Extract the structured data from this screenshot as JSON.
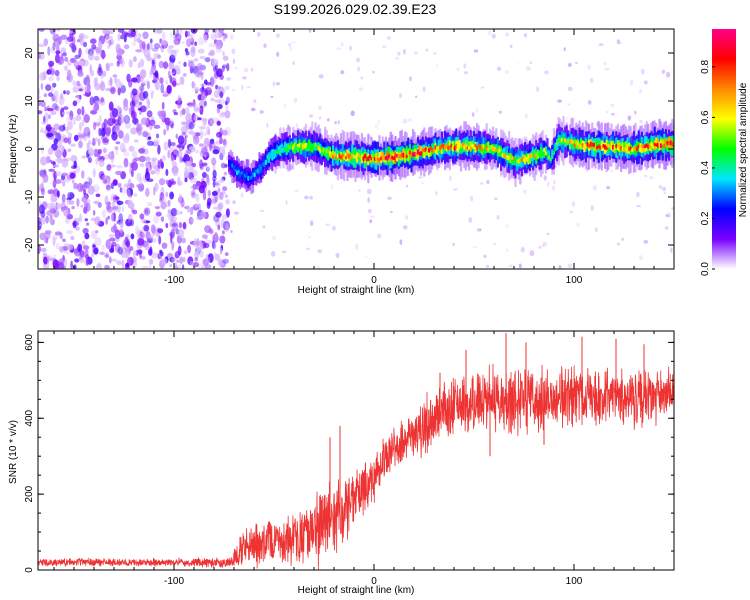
{
  "title": "S199.2026.029.02.39.E23",
  "colors": {
    "snr_line": "#ee3333",
    "frame": "#000000",
    "background": "#ffffff"
  },
  "chart_data": [
    {
      "type": "heatmap",
      "xlabel": "Height of straight line (km)",
      "ylabel": "Frequency (Hz)",
      "xlim": [
        -168,
        150
      ],
      "ylim": [
        -25,
        25
      ],
      "xticks": [
        -100,
        0,
        100
      ],
      "yticks": [
        -20,
        -10,
        0,
        10,
        20
      ],
      "colorbar": {
        "label": "Normalized spectral amplitude",
        "range": [
          0.0,
          0.95
        ],
        "ticks": [
          0.0,
          0.2,
          0.4,
          0.6,
          0.8
        ],
        "colormap": [
          "#ffffff",
          "#7700ff",
          "#0000ff",
          "#00e6ff",
          "#00ff00",
          "#ffff00",
          "#ff8800",
          "#ff0000",
          "#ff0088"
        ]
      },
      "track": {
        "x": [
          -73,
          -68,
          -62,
          -57,
          -52,
          -47,
          -40,
          -30,
          -20,
          -10,
          0,
          10,
          20,
          30,
          40,
          50,
          60,
          70,
          75,
          80,
          85,
          88,
          92,
          100,
          110,
          120,
          130,
          140,
          150
        ],
        "freq": [
          -3,
          -5,
          -6,
          -4,
          -1,
          0,
          0.5,
          0.5,
          -1.5,
          -1.5,
          -2,
          -1.5,
          -1,
          0,
          0.5,
          0.5,
          0,
          -2.5,
          -2,
          -1.5,
          -0.5,
          -2,
          2,
          1,
          0.5,
          0.5,
          0,
          1,
          1
        ],
        "amplitude": [
          0.2,
          0.3,
          0.25,
          0.3,
          0.35,
          0.4,
          0.5,
          0.45,
          0.55,
          0.6,
          0.65,
          0.75,
          0.7,
          0.55,
          0.6,
          0.55,
          0.5,
          0.5,
          0.55,
          0.5,
          0.45,
          0.4,
          0.45,
          0.55,
          0.65,
          0.6,
          0.6,
          0.65,
          0.7
        ]
      },
      "noise_region_x": [
        -168,
        -73
      ]
    },
    {
      "type": "line",
      "xlabel": "Height of straight line (km)",
      "ylabel": "SNR (10 * v/v)",
      "xlim": [
        -168,
        150
      ],
      "ylim": [
        0,
        630
      ],
      "xticks": [
        -100,
        0,
        100
      ],
      "yticks": [
        0,
        200,
        400,
        600
      ],
      "envelope": {
        "x": [
          -168,
          -100,
          -72,
          -65,
          -55,
          -45,
          -35,
          -28,
          -20,
          -10,
          0,
          10,
          20,
          30,
          40,
          50,
          60,
          70,
          80,
          90,
          100,
          110,
          120,
          130,
          140,
          150
        ],
        "mean": [
          20,
          20,
          20,
          60,
          70,
          75,
          90,
          110,
          140,
          180,
          250,
          320,
          360,
          400,
          430,
          440,
          450,
          440,
          450,
          450,
          460,
          450,
          460,
          450,
          460,
          470
        ],
        "spread": [
          8,
          8,
          10,
          40,
          45,
          50,
          60,
          80,
          70,
          60,
          50,
          50,
          55,
          60,
          60,
          65,
          70,
          70,
          65,
          60,
          65,
          60,
          60,
          60,
          60,
          55
        ]
      },
      "spikes": [
        {
          "x": -22.0,
          "value": 350
        },
        {
          "x": -17.0,
          "value": 380
        },
        {
          "x": 33.0,
          "value": 520
        },
        {
          "x": 46.0,
          "value": 580
        },
        {
          "x": 66.0,
          "value": 625
        },
        {
          "x": 76.0,
          "value": 600
        },
        {
          "x": 104.0,
          "value": 615
        },
        {
          "x": 121.0,
          "value": 610
        },
        {
          "x": 135.0,
          "value": 595
        },
        {
          "x": 58.0,
          "value": 300
        },
        {
          "x": 85.0,
          "value": 330
        }
      ]
    }
  ]
}
